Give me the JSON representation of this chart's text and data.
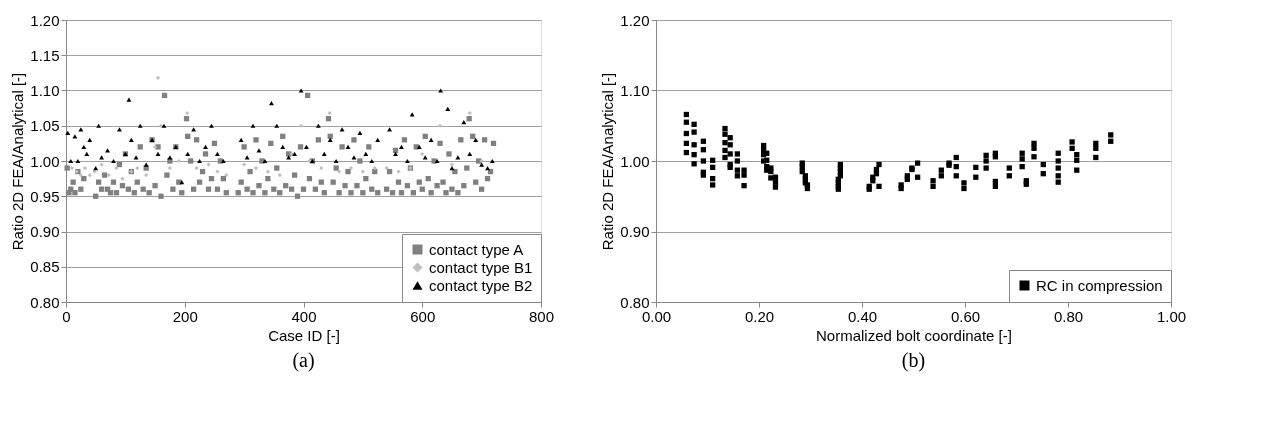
{
  "chart_data": [
    {
      "type": "scatter",
      "xlabel": "Case ID [-]",
      "ylabel": "Ratio  2D FEA/Analytical [-]",
      "annotations": [
        "(a)"
      ],
      "xlim": [
        0,
        800
      ],
      "xticks": [
        0,
        200,
        400,
        600,
        800
      ],
      "ylim": [
        0.8,
        1.2
      ],
      "yticks": [
        {
          "value": 0.8,
          "label": "0.80"
        },
        {
          "value": 0.85,
          "label": "0.85"
        },
        {
          "value": 0.9,
          "label": "0.90"
        },
        {
          "value": 0.95,
          "label": "0.95"
        },
        {
          "value": 1.0,
          "label": "1.00"
        },
        {
          "value": 1.05,
          "label": "1.05"
        },
        {
          "value": 1.1,
          "label": "1.10"
        },
        {
          "value": 1.15,
          "label": "1.15"
        },
        {
          "value": 1.2,
          "label": "1.20"
        }
      ],
      "grid": "y",
      "legend": "bottom right",
      "series": [
        {
          "name": "contact type A",
          "color": "#808080",
          "marker": "square",
          "x": [
            2,
            5,
            8,
            12,
            15,
            20,
            25,
            30,
            50,
            55,
            60,
            65,
            70,
            75,
            80,
            85,
            90,
            95,
            100,
            105,
            110,
            115,
            120,
            125,
            130,
            135,
            140,
            145,
            150,
            155,
            160,
            166,
            170,
            175,
            180,
            185,
            190,
            195,
            203,
            205,
            210,
            215,
            220,
            225,
            230,
            235,
            240,
            245,
            250,
            255,
            260,
            265,
            270,
            290,
            295,
            300,
            305,
            310,
            315,
            320,
            325,
            330,
            335,
            340,
            345,
            350,
            355,
            360,
            365,
            370,
            375,
            380,
            385,
            390,
            395,
            400,
            407,
            410,
            415,
            420,
            425,
            430,
            435,
            442,
            445,
            450,
            455,
            460,
            465,
            470,
            475,
            480,
            485,
            490,
            495,
            500,
            505,
            510,
            515,
            520,
            525,
            540,
            545,
            550,
            555,
            560,
            565,
            570,
            575,
            580,
            585,
            590,
            595,
            600,
            605,
            610,
            615,
            620,
            625,
            630,
            635,
            640,
            645,
            650,
            655,
            660,
            665,
            670,
            675,
            679,
            685,
            690,
            695,
            700,
            705,
            710,
            715,
            720
          ],
          "values": [
            0.99,
            0.955,
            0.96,
            0.97,
            0.955,
            0.985,
            0.96,
            0.975,
            0.95,
            0.97,
            0.96,
            0.98,
            0.96,
            0.955,
            0.97,
            0.955,
            0.995,
            0.965,
            1.01,
            0.96,
            0.985,
            0.955,
            0.97,
            1.02,
            0.96,
            0.99,
            0.955,
            1.03,
            0.965,
            1.02,
            0.95,
            1.093,
            0.98,
            1.0,
            0.96,
            1.02,
            0.97,
            0.955,
            1.06,
            1.035,
            1.0,
            0.96,
            1.03,
            0.97,
            0.985,
            1.01,
            0.96,
            0.975,
            1.025,
            0.96,
            1.0,
            0.975,
            0.955,
            0.955,
            0.97,
            1.02,
            0.96,
            0.985,
            0.955,
            1.03,
            0.965,
            1.0,
            0.955,
            0.975,
            1.025,
            0.96,
            0.99,
            0.955,
            1.035,
            0.965,
            1.01,
            0.96,
            0.98,
            0.95,
            1.02,
            0.96,
            1.093,
            0.975,
            1.0,
            0.96,
            1.03,
            0.97,
            0.955,
            1.06,
            1.035,
            0.97,
            0.99,
            0.955,
            1.02,
            0.965,
            0.985,
            0.955,
            1.03,
            0.965,
            1.0,
            0.955,
            0.975,
            1.02,
            0.96,
            0.985,
            0.955,
            0.96,
            0.985,
            0.955,
            1.015,
            0.97,
            0.955,
            1.03,
            0.965,
            0.99,
            0.955,
            1.02,
            0.97,
            0.96,
            1.035,
            0.975,
            0.955,
            1.0,
            0.965,
            1.025,
            0.97,
            0.955,
            1.01,
            0.96,
            0.985,
            0.955,
            1.03,
            0.965,
            0.99,
            1.06,
            1.035,
            0.97,
            1.0,
            0.96,
            1.03,
            0.975,
            0.985,
            1.025
          ]
        },
        {
          "name": "contact type B1",
          "color": "#c0c0c0",
          "marker": "diamond",
          "x": [
            10,
            18,
            25,
            32,
            40,
            48,
            60,
            72,
            85,
            95,
            110,
            120,
            135,
            150,
            155,
            160,
            175,
            190,
            204,
            220,
            240,
            255,
            270,
            300,
            320,
            340,
            360,
            380,
            396,
            410,
            430,
            444,
            460,
            480,
            500,
            520,
            540,
            560,
            580,
            600,
            630,
            650,
            680,
            700
          ],
          "values": [
            0.99,
            0.985,
            0.98,
            0.99,
            0.98,
            0.985,
            0.995,
            0.98,
            0.99,
            0.975,
            0.985,
            0.99,
            0.98,
            1.02,
            1.118,
            1.05,
            0.99,
            1.0,
            1.068,
            0.99,
            0.995,
            0.985,
            0.98,
            0.995,
            0.99,
            0.985,
            0.98,
            1.01,
            1.05,
            1.0,
            0.99,
            1.068,
            0.985,
            0.99,
            0.985,
            0.99,
            0.99,
            0.985,
            0.99,
            1.01,
            1.05,
            0.995,
            1.068,
            1.0
          ]
        },
        {
          "name": "contact type B2",
          "color": "#000000",
          "marker": "triangle",
          "x": [
            3,
            8,
            15,
            20,
            25,
            30,
            35,
            40,
            50,
            55,
            60,
            70,
            80,
            90,
            100,
            106,
            110,
            118,
            125,
            135,
            145,
            155,
            165,
            175,
            185,
            195,
            205,
            215,
            225,
            235,
            245,
            255,
            265,
            295,
            305,
            315,
            325,
            335,
            346,
            355,
            365,
            375,
            385,
            396,
            405,
            415,
            425,
            435,
            445,
            455,
            465,
            475,
            485,
            495,
            505,
            515,
            525,
            545,
            555,
            565,
            575,
            583,
            595,
            605,
            615,
            625,
            631,
            643,
            650,
            660,
            670,
            680,
            690,
            700,
            710,
            718
          ],
          "values": [
            1.04,
            1.0,
            1.035,
            1.0,
            1.045,
            1.02,
            1.01,
            1.03,
            0.99,
            1.05,
            1.005,
            1.015,
            1.0,
            1.045,
            1.01,
            1.087,
            1.03,
            1.005,
            1.05,
            0.995,
            1.03,
            1.01,
            1.05,
            1.005,
            1.02,
            0.97,
            1.01,
            1.045,
            1.0,
            1.02,
            1.05,
            1.01,
            1.0,
            1.03,
            1.005,
            1.05,
            1.015,
            1.0,
            1.082,
            1.05,
            1.02,
            1.005,
            1.01,
            1.1,
            1.02,
            1.0,
            1.05,
            1.01,
            1.03,
            1.0,
            1.045,
            1.02,
            1.005,
            1.04,
            1.01,
            1.0,
            1.03,
            1.045,
            1.01,
            1.02,
            1.0,
            1.066,
            1.02,
            1.005,
            1.03,
            1.0,
            1.1,
            1.074,
            0.99,
            1.005,
            1.055,
            1.01,
            1.03,
            0.995,
            0.99,
            1.0
          ]
        }
      ]
    },
    {
      "type": "scatter",
      "xlabel": "Normalized bolt coordinate [-]",
      "ylabel": "Ratio  2D FEA/Analytical [-]",
      "annotations": [
        "(b)"
      ],
      "xlim": [
        0,
        1
      ],
      "xticks": [
        {
          "value": 0,
          "label": "0.00"
        },
        {
          "value": 0.2,
          "label": "0.20"
        },
        {
          "value": 0.4,
          "label": "0.40"
        },
        {
          "value": 0.6,
          "label": "0.60"
        },
        {
          "value": 0.8,
          "label": "0.80"
        },
        {
          "value": 1,
          "label": "1.00"
        }
      ],
      "ylim": [
        0.8,
        1.2
      ],
      "yticks": [
        {
          "value": 0.8,
          "label": "0.80"
        },
        {
          "value": 0.9,
          "label": "0.90"
        },
        {
          "value": 1.0,
          "label": "1.00"
        },
        {
          "value": 1.1,
          "label": "1.10"
        },
        {
          "value": 1.2,
          "label": "1.20"
        }
      ],
      "grid": "y",
      "legend": "bottom right",
      "series": [
        {
          "name": "RC in compression",
          "color": "#000000",
          "marker": "square",
          "x": [
            0.059,
            0.059,
            0.059,
            0.059,
            0.059,
            0.074,
            0.074,
            0.074,
            0.074,
            0.074,
            0.092,
            0.092,
            0.092,
            0.092,
            0.092,
            0.11,
            0.11,
            0.11,
            0.11,
            0.134,
            0.134,
            0.134,
            0.134,
            0.134,
            0.144,
            0.144,
            0.144,
            0.144,
            0.144,
            0.158,
            0.158,
            0.158,
            0.158,
            0.171,
            0.171,
            0.171,
            0.209,
            0.209,
            0.209,
            0.209,
            0.215,
            0.215,
            0.215,
            0.215,
            0.223,
            0.223,
            0.223,
            0.232,
            0.232,
            0.232,
            0.284,
            0.284,
            0.284,
            0.29,
            0.29,
            0.29,
            0.294,
            0.294,
            0.354,
            0.354,
            0.354,
            0.354,
            0.358,
            0.358,
            0.358,
            0.358,
            0.414,
            0.414,
            0.421,
            0.421,
            0.428,
            0.428,
            0.433,
            0.433,
            0.476,
            0.476,
            0.488,
            0.488,
            0.497,
            0.497,
            0.508,
            0.508,
            0.538,
            0.538,
            0.554,
            0.554,
            0.569,
            0.569,
            0.583,
            0.583,
            0.583,
            0.598,
            0.598,
            0.621,
            0.621,
            0.641,
            0.641,
            0.641,
            0.659,
            0.659,
            0.659,
            0.659,
            0.686,
            0.686,
            0.711,
            0.711,
            0.711,
            0.719,
            0.719,
            0.734,
            0.734,
            0.734,
            0.752,
            0.752,
            0.781,
            0.781,
            0.781,
            0.781,
            0.781,
            0.808,
            0.808,
            0.817,
            0.817,
            0.817,
            0.854,
            0.854,
            0.854,
            0.883,
            0.883
          ],
          "values": [
            1.066,
            1.055,
            1.039,
            1.025,
            1.012,
            1.052,
            1.041,
            1.023,
            1.009,
            0.996,
            1.028,
            1.016,
            1.0,
            0.984,
            0.98,
            1.001,
            0.991,
            0.975,
            0.966,
            1.046,
            1.038,
            1.026,
            1.015,
            1.005,
            1.033,
            1.023,
            1.01,
            0.995,
            0.991,
            1.01,
            1.0,
            0.987,
            0.979,
            0.987,
            0.98,
            0.965,
            1.022,
            1.015,
            1.009,
            1.0,
            1.011,
            1.001,
            0.992,
            0.987,
            0.99,
            0.985,
            0.976,
            0.977,
            0.97,
            0.963,
            0.997,
            0.992,
            0.985,
            0.979,
            0.974,
            0.969,
            0.966,
            0.961,
            0.96,
            0.964,
            0.969,
            0.974,
            0.979,
            0.985,
            0.99,
            0.995,
            0.96,
            0.964,
            0.972,
            0.977,
            0.982,
            0.988,
            0.995,
            0.964,
            0.961,
            0.966,
            0.974,
            0.979,
            0.988,
            0.99,
            0.997,
            0.977,
            0.964,
            0.972,
            0.979,
            0.987,
            0.994,
            0.997,
            1.005,
            0.992,
            0.979,
            0.969,
            0.961,
            0.977,
            0.991,
            0.99,
            1.0,
            1.008,
            1.011,
            1.006,
            0.971,
            0.964,
            0.99,
            0.979,
            1.011,
            1.003,
            0.992,
            0.972,
            0.967,
            1.025,
            1.018,
            1.006,
            0.995,
            0.982,
            1.011,
            1.0,
            0.99,
            0.979,
            0.97,
            1.027,
            1.018,
            1.009,
            1.001,
            0.987,
            1.025,
            1.018,
            1.005,
            1.037,
            1.028
          ]
        }
      ]
    }
  ]
}
